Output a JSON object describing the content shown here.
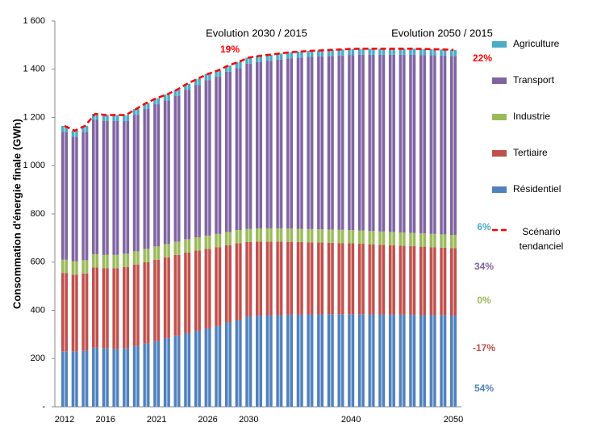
{
  "chart_data": {
    "type": "bar",
    "stacked": true,
    "y_label": "Consommation d'énergie finale (GWh)",
    "categories": [
      "2012",
      null,
      null,
      null,
      "2016",
      null,
      null,
      null,
      null,
      "2021",
      null,
      null,
      null,
      null,
      "2026",
      null,
      null,
      null,
      "2030",
      null,
      null,
      null,
      null,
      null,
      null,
      null,
      null,
      null,
      "2040",
      null,
      null,
      null,
      null,
      null,
      null,
      null,
      null,
      null,
      "2050"
    ],
    "series": [
      {
        "name": "Résidentiel",
        "color": "#4f81bd",
        "values": [
          230,
          230,
          232,
          245,
          242,
          240,
          242,
          252,
          262,
          272,
          285,
          295,
          305,
          315,
          325,
          335,
          350,
          360,
          375,
          378,
          380,
          380,
          382,
          382,
          383,
          383,
          384,
          384,
          384,
          384,
          383,
          383,
          382,
          382,
          381,
          380,
          380,
          379,
          378
        ]
      },
      {
        "name": "Tertiaire",
        "color": "#c0504d",
        "values": [
          325,
          318,
          321,
          333,
          333,
          335,
          338,
          338,
          338,
          338,
          335,
          335,
          335,
          333,
          330,
          327,
          320,
          318,
          308,
          307,
          305,
          305,
          302,
          301,
          299,
          298,
          296,
          295,
          294,
          292,
          291,
          289,
          288,
          286,
          285,
          284,
          282,
          281,
          280
        ]
      },
      {
        "name": "Industrie",
        "color": "#9bbb59",
        "values": [
          55,
          55,
          55,
          55,
          55,
          55,
          55,
          55,
          55,
          55,
          55,
          55,
          55,
          55,
          55,
          55,
          55,
          55,
          55,
          55,
          55,
          55,
          55,
          55,
          55,
          55,
          55,
          55,
          55,
          55,
          55,
          55,
          55,
          55,
          55,
          55,
          55,
          55,
          55
        ]
      },
      {
        "name": "Transport",
        "color": "#8064a2",
        "values": [
          530,
          517,
          532,
          557,
          555,
          555,
          550,
          565,
          580,
          590,
          595,
          605,
          620,
          632,
          645,
          653,
          665,
          672,
          685,
          690,
          695,
          700,
          706,
          710,
          714,
          717,
          720,
          723,
          726,
          729,
          731,
          733,
          735,
          737,
          739,
          740,
          741,
          742,
          742
        ]
      },
      {
        "name": "Agriculture",
        "color": "#4bacc6",
        "values": [
          25,
          25,
          25,
          25,
          25,
          25,
          25,
          25,
          25,
          25,
          25,
          25,
          25,
          25,
          25,
          25,
          25,
          25,
          25,
          25,
          25,
          25,
          25,
          25,
          25,
          25,
          25,
          25,
          25,
          25,
          25,
          25,
          25,
          25,
          25,
          25,
          25,
          25,
          25
        ]
      }
    ],
    "scenario": {
      "name": "Scénario tendanciel",
      "color": "#ff0000",
      "values": [
        1165,
        1145,
        1165,
        1215,
        1210,
        1210,
        1210,
        1235,
        1260,
        1280,
        1295,
        1315,
        1340,
        1360,
        1380,
        1395,
        1415,
        1430,
        1448,
        1455,
        1460,
        1465,
        1470,
        1473,
        1476,
        1478,
        1480,
        1482,
        1484,
        1485,
        1485,
        1485,
        1485,
        1485,
        1485,
        1484,
        1483,
        1482,
        1480
      ]
    },
    "ylim": [
      0,
      1600
    ],
    "yticks": [
      {
        "value": 0,
        "label": "-"
      },
      200,
      400,
      600,
      800,
      {
        "value": 1000,
        "label": "1 000"
      },
      {
        "value": 1200,
        "label": "1 200"
      },
      {
        "value": 1400,
        "label": "1 400"
      },
      {
        "value": 1600,
        "label": "1 600"
      }
    ],
    "grid": false,
    "legend": "right",
    "annotations": [
      {
        "text": "Evolution 2030 / 2015",
        "color": "#000000"
      },
      {
        "text": "Evolution 2050 / 2015",
        "color": "#000000"
      },
      {
        "text": "19%",
        "color": "#ff0000"
      },
      {
        "text": "22%",
        "color": "#ff0000"
      },
      {
        "text": "6%",
        "color": "#4bacc6"
      },
      {
        "text": "34%",
        "color": "#8064a2"
      },
      {
        "text": "0%",
        "color": "#9bbb59"
      },
      {
        "text": "-17%",
        "color": "#c0504d"
      },
      {
        "text": "54%",
        "color": "#4f81bd"
      }
    ]
  }
}
